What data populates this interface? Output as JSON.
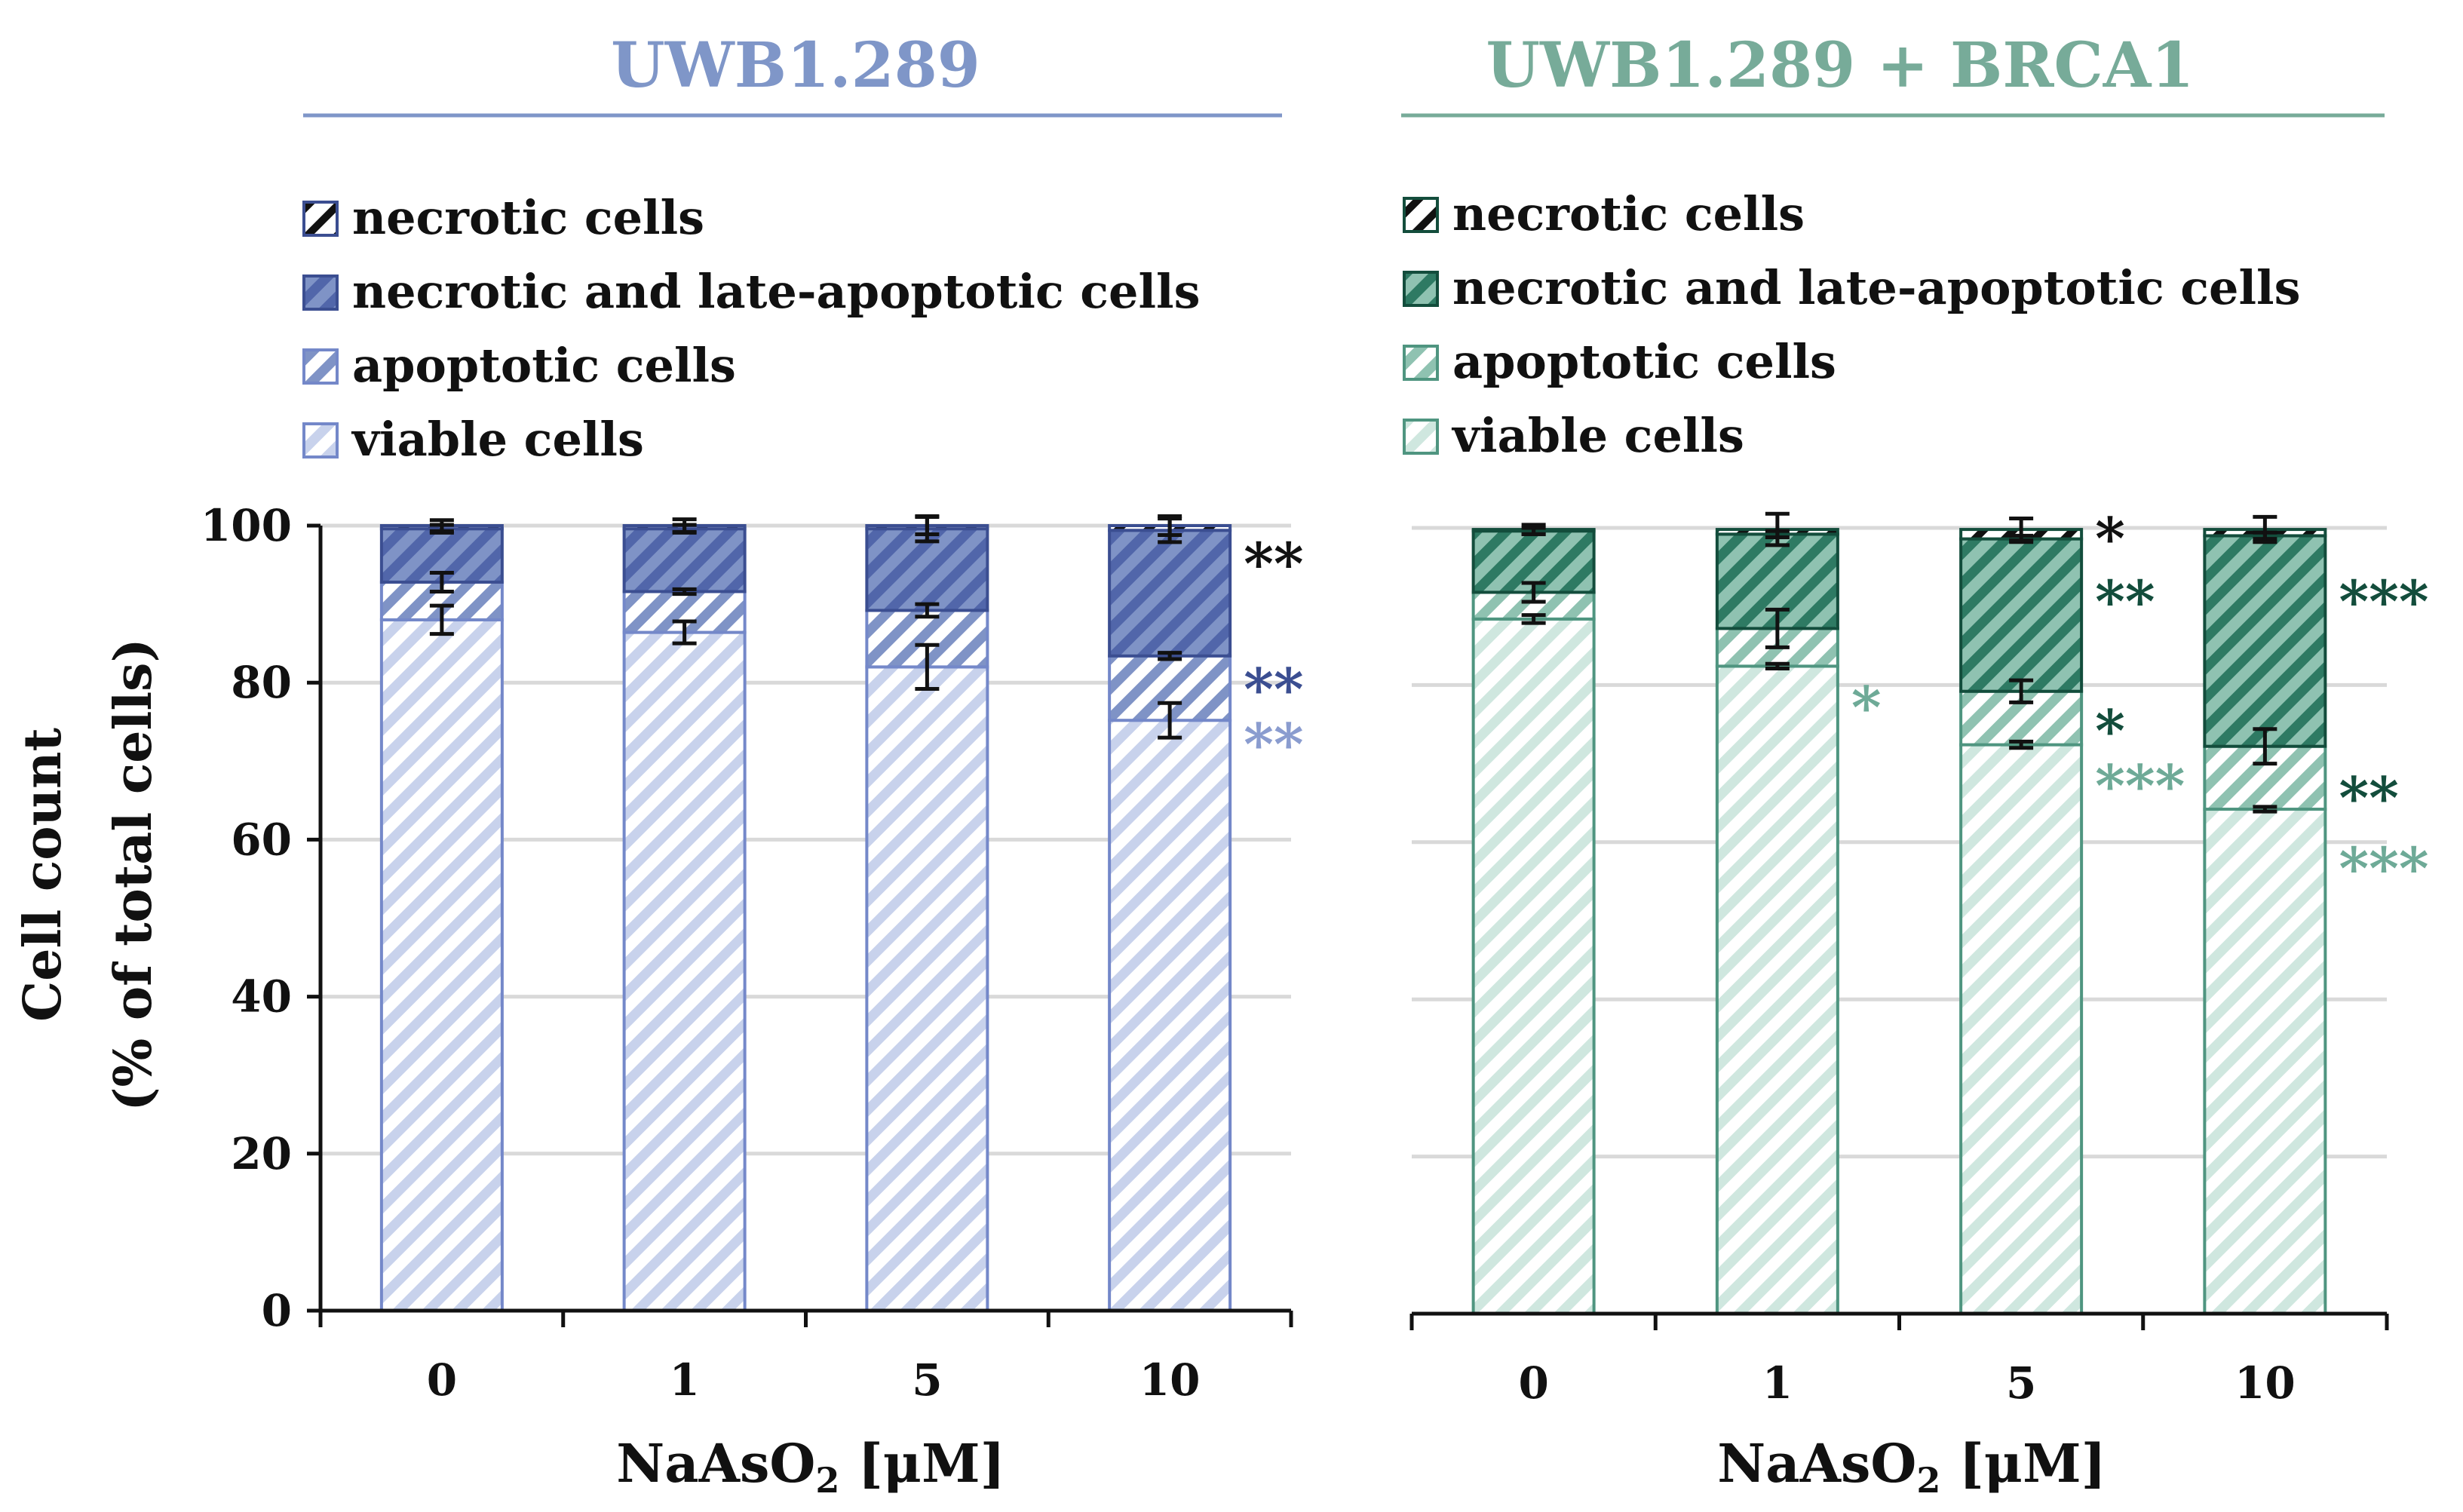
{
  "y_axis": {
    "label_line1": "Cell count",
    "label_line2": "(% of total cells)"
  },
  "chart_data": [
    {
      "type": "bar",
      "stacked": true,
      "title": "UWB1.289",
      "xlabel_main": "NaAsO",
      "xlabel_sub": "2",
      "xlabel_unit": " [μM]",
      "ylim": [
        0,
        100
      ],
      "yticks": [
        0,
        20,
        40,
        60,
        80,
        100
      ],
      "grid": true,
      "legend_position": "top-left",
      "categories": [
        "0",
        "1",
        "5",
        "10"
      ],
      "colors": {
        "light": "#c8d2ec",
        "mid": "#7f93c6",
        "dark": "#5166aa",
        "outline": "#7488c9",
        "title": "#7f96c8"
      },
      "series": [
        {
          "name": "viable cells",
          "values": [
            88,
            86.4,
            82,
            75.2
          ],
          "errors": [
            1.8,
            1.4,
            2.8,
            2.2
          ]
        },
        {
          "name": "apoptotic cells",
          "values": [
            4.8,
            5.2,
            7.2,
            8.2
          ],
          "errors": [
            1.2,
            0.3,
            0.8,
            0.4
          ]
        },
        {
          "name": "necrotic and late-apoptotic cells",
          "values": [
            6.8,
            8,
            10.4,
            16
          ],
          "errors": [
            0.5,
            0.5,
            1.6,
            1.5
          ]
        },
        {
          "name": "necrotic cells",
          "values": [
            0.4,
            0.4,
            0.4,
            0.6
          ],
          "errors": [
            0.7,
            0.8,
            1.1,
            1.2
          ]
        }
      ],
      "annotations": [
        {
          "category": "10",
          "y": 95.5,
          "text": "**",
          "color": "#111111"
        },
        {
          "category": "10",
          "y": 79.5,
          "text": "**",
          "color": "#3b4e91"
        },
        {
          "category": "10",
          "y": 72.5,
          "text": "**",
          "color": "#8a9ccf"
        }
      ]
    },
    {
      "type": "bar",
      "stacked": true,
      "title": "UWB1.289 + BRCA1",
      "xlabel_main": "NaAsO",
      "xlabel_sub": "2",
      "xlabel_unit": " [μM]",
      "ylim": [
        0,
        100
      ],
      "yticks": [
        0,
        20,
        40,
        60,
        80,
        100
      ],
      "grid": true,
      "legend_position": "top-left",
      "categories": [
        "0",
        "1",
        "5",
        "10"
      ],
      "colors": {
        "light": "#cfe7df",
        "mid": "#8fc2b1",
        "dark": "#2e7a63",
        "outline": "#4f9580",
        "title": "#77ab99"
      },
      "series": [
        {
          "name": "viable cells",
          "values": [
            88.4,
            82.4,
            72.4,
            64.2
          ],
          "errors": [
            0.5,
            0.3,
            0.4,
            0.3
          ]
        },
        {
          "name": "apoptotic cells",
          "values": [
            3.4,
            4.8,
            6.8,
            8
          ],
          "errors": [
            1.2,
            2.4,
            1.4,
            2.2
          ]
        },
        {
          "name": "necrotic and late-apoptotic cells",
          "values": [
            7.8,
            12,
            19.4,
            26.8
          ],
          "errors": [
            0.4,
            0.4,
            0.4,
            0.4
          ]
        },
        {
          "name": "necrotic cells",
          "values": [
            0.2,
            0.6,
            1.2,
            0.8
          ],
          "errors": [
            0.6,
            2,
            1.4,
            1.6
          ]
        }
      ],
      "annotations": [
        {
          "category": "1",
          "y": 77.5,
          "text": "*",
          "color": "#6eaa97"
        },
        {
          "category": "5",
          "y": 99,
          "text": "*",
          "color": "#111111"
        },
        {
          "category": "5",
          "y": 91,
          "text": "**",
          "color": "#134d3c"
        },
        {
          "category": "5",
          "y": 74.5,
          "text": "*",
          "color": "#134d3c"
        },
        {
          "category": "5",
          "y": 67.5,
          "text": "***",
          "color": "#6eaa97"
        },
        {
          "category": "10",
          "y": 91,
          "text": "***",
          "color": "#134d3c"
        },
        {
          "category": "10",
          "y": 66,
          "text": "**",
          "color": "#134d3c"
        },
        {
          "category": "10",
          "y": 57,
          "text": "***",
          "color": "#6eaa97"
        }
      ]
    }
  ]
}
